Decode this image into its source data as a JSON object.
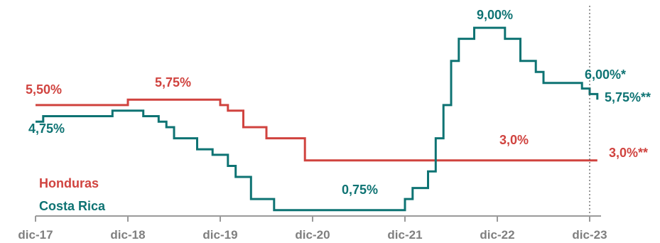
{
  "colors": {
    "honduras": "#d0433f",
    "costa_rica": "#0e7373",
    "axis": "#9a9a9a",
    "tick_text": "#7f7f7f"
  },
  "chart_data": {
    "type": "line",
    "step": true,
    "title": "",
    "xlabel": "",
    "ylabel": "",
    "x_ticks": [
      "dic-17",
      "dic-18",
      "dic-19",
      "dic-20",
      "dic-21",
      "dic-22",
      "dic-23"
    ],
    "xlim": [
      "2017-12",
      "2024-01"
    ],
    "ylim": [
      0,
      9.5
    ],
    "grid": false,
    "legend_position": "bottom-left",
    "reference_line": {
      "x": "2023-12",
      "style": "dotted"
    },
    "series": [
      {
        "name": "Honduras",
        "color": "#d0433f",
        "points": [
          [
            "2017-12",
            5.5
          ],
          [
            "2018-12",
            5.75
          ],
          [
            "2019-12",
            5.5
          ],
          [
            "2020-01",
            5.25
          ],
          [
            "2020-03",
            4.5
          ],
          [
            "2020-06",
            4.0
          ],
          [
            "2020-11",
            3.0
          ],
          [
            "2024-01",
            3.0
          ]
        ]
      },
      {
        "name": "Costa Rica",
        "color": "#0e7373",
        "points": [
          [
            "2017-12",
            4.75
          ],
          [
            "2018-01",
            5.0
          ],
          [
            "2018-10",
            5.25
          ],
          [
            "2019-02",
            5.0
          ],
          [
            "2019-04",
            4.75
          ],
          [
            "2019-05",
            4.5
          ],
          [
            "2019-06",
            4.0
          ],
          [
            "2019-09",
            3.5
          ],
          [
            "2019-11",
            3.25
          ],
          [
            "2020-01",
            2.75
          ],
          [
            "2020-02",
            2.25
          ],
          [
            "2020-04",
            1.25
          ],
          [
            "2020-07",
            0.75
          ],
          [
            "2021-12",
            1.25
          ],
          [
            "2022-01",
            1.75
          ],
          [
            "2022-03",
            2.5
          ],
          [
            "2022-04",
            4.0
          ],
          [
            "2022-05",
            5.5
          ],
          [
            "2022-06",
            7.5
          ],
          [
            "2022-07",
            8.5
          ],
          [
            "2022-09",
            9.0
          ],
          [
            "2023-01",
            8.5
          ],
          [
            "2023-03",
            7.5
          ],
          [
            "2023-05",
            7.0
          ],
          [
            "2023-06",
            6.5
          ],
          [
            "2023-11",
            6.25
          ],
          [
            "2023-12",
            6.0
          ],
          [
            "2024-01",
            5.75
          ]
        ]
      }
    ],
    "annotations": {
      "hn_start": "5,50%",
      "hn_peak": "5,75%",
      "hn_mid": "3,0%",
      "hn_end": "3,0%**",
      "cr_start": "4,75%",
      "cr_low": "0,75%",
      "cr_peak": "9,00%",
      "cr_dec": "6,00%*",
      "cr_end": "5,75%**"
    }
  }
}
